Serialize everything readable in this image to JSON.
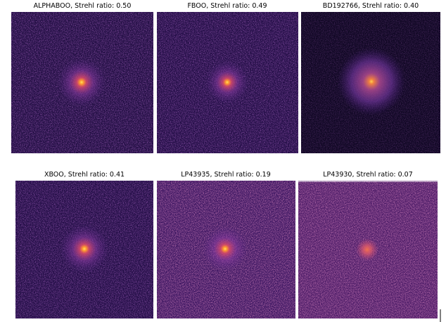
{
  "panels": [
    {
      "title": "ALPHABOO, Strehl ratio: 0.50"
    },
    {
      "title": "FBOO, Strehl ratio: 0.49"
    },
    {
      "title": "BD192766, Strehl ratio: 0.40"
    },
    {
      "title": "XBOO, Strehl ratio: 0.41"
    },
    {
      "title": "LP43935, Strehl ratio: 0.19"
    },
    {
      "title": "LP43930, Strehl ratio: 0.07"
    }
  ]
}
